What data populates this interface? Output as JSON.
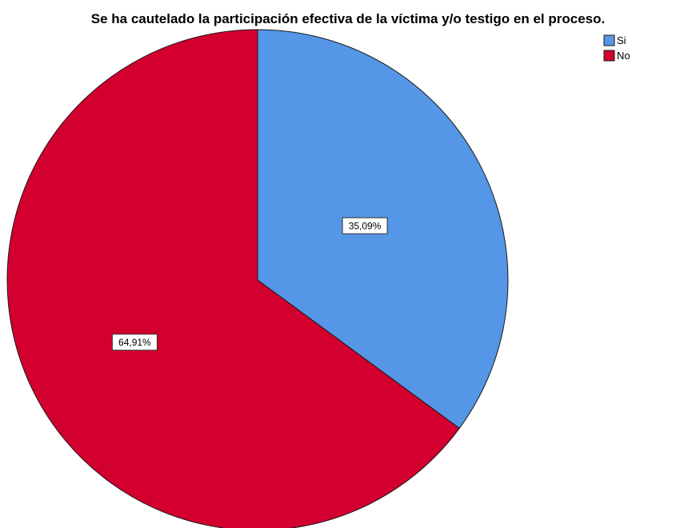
{
  "chart_data": {
    "type": "pie",
    "title": "Se ha cautelado la participación efectiva de la víctima y/o testigo en el proceso.",
    "slices": [
      {
        "label": "Si",
        "value": 35.09,
        "value_label": "35,09%",
        "color": "#5596e6"
      },
      {
        "label": "No",
        "value": 64.91,
        "value_label": "64,91%",
        "color": "#d3002f"
      }
    ],
    "start_angle_deg": 0,
    "direction": "clockwise",
    "legend_position": "top-right",
    "legend": [
      {
        "label": "Si",
        "color": "#5596e6"
      },
      {
        "label": "No",
        "color": "#d3002f"
      }
    ]
  }
}
